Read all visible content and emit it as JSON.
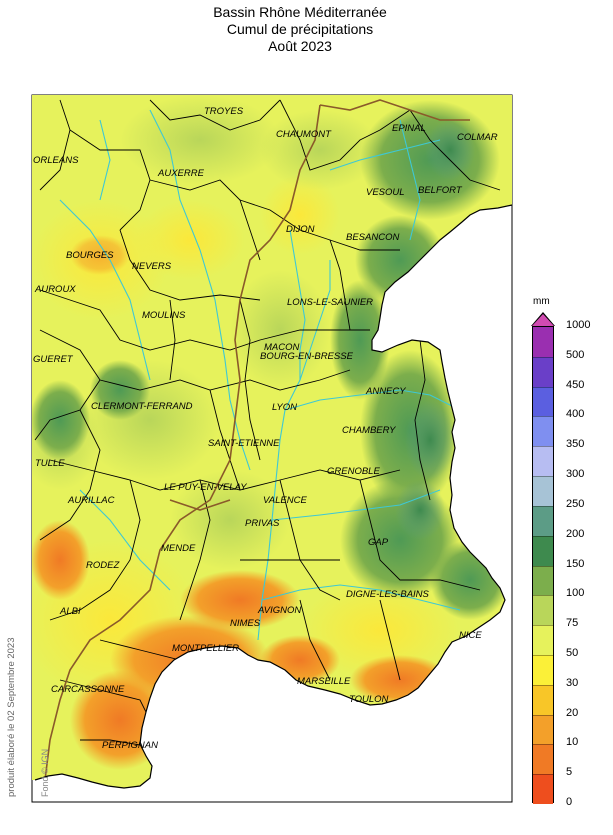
{
  "title": {
    "line1": "Bassin Rhône Méditerranée",
    "line2": "Cumul de précipitations",
    "line3": "Août 2023"
  },
  "credit": "produit élaboré le 02 Septembre 2023",
  "fond_credit": "Fond © IGN",
  "legend": {
    "unit": "mm",
    "breaks": [
      {
        "label": "1000",
        "color": "#c23aa6"
      },
      {
        "label": "500",
        "color": "#9a2fb0"
      },
      {
        "label": "450",
        "color": "#6a3fc8"
      },
      {
        "label": "400",
        "color": "#5b5fe0"
      },
      {
        "label": "350",
        "color": "#7f8ff0"
      },
      {
        "label": "300",
        "color": "#b7bdf2"
      },
      {
        "label": "250",
        "color": "#a7c3d6"
      },
      {
        "label": "200",
        "color": "#5c9c86"
      },
      {
        "label": "150",
        "color": "#3e8a4e"
      },
      {
        "label": "100",
        "color": "#7cae4c"
      },
      {
        "label": "75",
        "color": "#b9d65a"
      },
      {
        "label": "50",
        "color": "#e6f25c"
      },
      {
        "label": "30",
        "color": "#fbf038"
      },
      {
        "label": "20",
        "color": "#f8c628"
      },
      {
        "label": "10",
        "color": "#f3a02a"
      },
      {
        "label": "5",
        "color": "#f07a25"
      },
      {
        "label": "0",
        "color": "#ee4e1e"
      }
    ]
  },
  "cities": [
    {
      "name": "TROYES"
    },
    {
      "name": "CHAUMONT"
    },
    {
      "name": "EPINAL"
    },
    {
      "name": "COLMAR"
    },
    {
      "name": "ORLEANS"
    },
    {
      "name": "AUXERRE"
    },
    {
      "name": "VESOUL"
    },
    {
      "name": "BELFORT"
    },
    {
      "name": "DIJON"
    },
    {
      "name": "BESANCON"
    },
    {
      "name": "BOURGES"
    },
    {
      "name": "NEVERS"
    },
    {
      "name": "AUROUX"
    },
    {
      "name": "LONS-LE-SAUNIER"
    },
    {
      "name": "MOULINS"
    },
    {
      "name": "MACON"
    },
    {
      "name": "BOURG-EN-BRESSE"
    },
    {
      "name": "GUERET"
    },
    {
      "name": "ANNECY"
    },
    {
      "name": "CLERMONT-FERRAND"
    },
    {
      "name": "LYON"
    },
    {
      "name": "CHAMBERY"
    },
    {
      "name": "SAINT-ETIENNE"
    },
    {
      "name": "GRENOBLE"
    },
    {
      "name": "TULLE"
    },
    {
      "name": "LE PUY-EN-VELAY"
    },
    {
      "name": "VALENCE"
    },
    {
      "name": "AURILLAC"
    },
    {
      "name": "PRIVAS"
    },
    {
      "name": "GAP"
    },
    {
      "name": "MENDE"
    },
    {
      "name": "RODEZ"
    },
    {
      "name": "DIGNE-LES-BAINS"
    },
    {
      "name": "AVIGNON"
    },
    {
      "name": "ALBI"
    },
    {
      "name": "NIMES"
    },
    {
      "name": "NICE"
    },
    {
      "name": "MONTPELLIER"
    },
    {
      "name": "MARSEILLE"
    },
    {
      "name": "CARCASSONNE"
    },
    {
      "name": "TOULON"
    },
    {
      "name": "PERPIGNAN"
    }
  ],
  "colors": {
    "sea": "#ffffff",
    "river": "#3ec8d4",
    "department_border": "#000000",
    "basin_border": "#8a5a2a"
  }
}
